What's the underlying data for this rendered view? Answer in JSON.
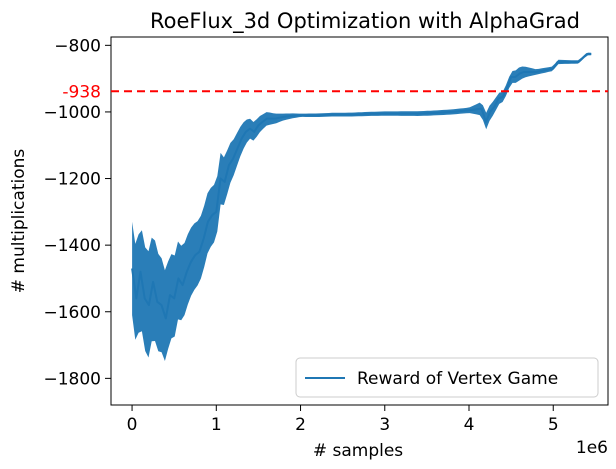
{
  "chart_data": {
    "type": "line",
    "title": "RoeFlux_3d Optimization with AlphaGrad",
    "xlabel": "# samples",
    "ylabel": "# multiplications",
    "x_scale_label": "1e6",
    "xlim": [
      -0.25,
      5.65
    ],
    "ylim": [
      -1880,
      -775
    ],
    "x_ticks": [
      0,
      1,
      2,
      3,
      4,
      5
    ],
    "x_tick_labels": [
      "0",
      "1",
      "2",
      "3",
      "4",
      "5"
    ],
    "y_ticks": [
      -1800,
      -1600,
      -1400,
      -1200,
      -1000,
      -800
    ],
    "y_tick_labels": [
      "−1800",
      "−1600",
      "−1400",
      "−1200",
      "−1000",
      "−800"
    ],
    "grid": false,
    "legend_position": "lower-right",
    "reference_line": {
      "value": -938,
      "label": "-938",
      "color": "#ff0000",
      "style": "dashed"
    },
    "series": [
      {
        "name": "Reward of Vertex Game",
        "color": "#1f77b4",
        "x": [
          0,
          0.05,
          0.1,
          0.15,
          0.2,
          0.25,
          0.3,
          0.35,
          0.4,
          0.45,
          0.5,
          0.55,
          0.6,
          0.65,
          0.7,
          0.75,
          0.8,
          0.85,
          0.9,
          0.95,
          1.0,
          1.05,
          1.1,
          1.15,
          1.2,
          1.25,
          1.3,
          1.35,
          1.4,
          1.45,
          1.5,
          1.55,
          1.6,
          1.7,
          1.8,
          1.9,
          2.0,
          2.2,
          2.4,
          2.6,
          2.8,
          3.0,
          3.2,
          3.4,
          3.6,
          3.8,
          4.0,
          4.15,
          4.2,
          4.25,
          4.3,
          4.35,
          4.4,
          4.45,
          4.5,
          4.55,
          4.6,
          4.65,
          4.7,
          4.8,
          4.9,
          5.0,
          5.05,
          5.1,
          5.2,
          5.3,
          5.4,
          5.45
        ],
        "y": [
          -1470,
          -1560,
          -1480,
          -1560,
          -1580,
          -1510,
          -1570,
          -1580,
          -1620,
          -1550,
          -1560,
          -1500,
          -1520,
          -1480,
          -1450,
          -1430,
          -1420,
          -1380,
          -1330,
          -1310,
          -1300,
          -1200,
          -1210,
          -1160,
          -1140,
          -1110,
          -1080,
          -1060,
          -1050,
          -1060,
          -1040,
          -1030,
          -1020,
          -1020,
          -1015,
          -1012,
          -1010,
          -1010,
          -1008,
          -1008,
          -1006,
          -1005,
          -1005,
          -1005,
          -1003,
          -1000,
          -995,
          -990,
          -1030,
          -1000,
          -985,
          -960,
          -955,
          -930,
          -895,
          -895,
          -885,
          -880,
          -880,
          -880,
          -875,
          -870,
          -850,
          -850,
          -850,
          -850,
          -826,
          -826
        ]
      }
    ]
  }
}
